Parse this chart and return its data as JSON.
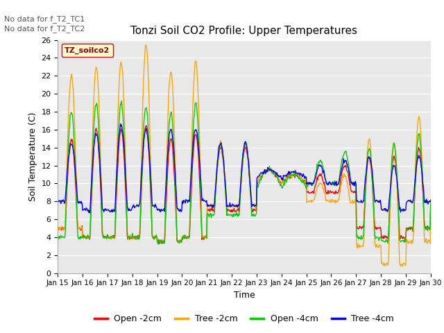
{
  "title": "Tonzi Soil CO2 Profile: Upper Temperatures",
  "xlabel": "Time",
  "ylabel": "Soil Temperature (C)",
  "annotations": [
    "No data for f_T2_TC1",
    "No data for f_T2_TC2"
  ],
  "legend_label": "TZ_soilco2",
  "series_labels": [
    "Open -2cm",
    "Tree -2cm",
    "Open -4cm",
    "Tree -4cm"
  ],
  "series_colors": [
    "#ff0000",
    "#ffa500",
    "#00cc00",
    "#0000ff"
  ],
  "ylim": [
    0,
    26
  ],
  "yticks": [
    0,
    2,
    4,
    6,
    8,
    10,
    12,
    14,
    16,
    18,
    20,
    22,
    24,
    26
  ],
  "x_tick_labels": [
    "Jan 15",
    "Jan 16",
    "Jan 17",
    "Jan 18",
    "Jan 19",
    "Jan 20",
    "Jan 21",
    "Jan 22",
    "Jan 23",
    "Jan 24",
    "Jan 25",
    "Jan 26",
    "Jan 27",
    "Jan 28",
    "Jan 29",
    "Jan 30"
  ],
  "background_color": "#e8e8e8",
  "grid_color": "#ffffff",
  "line_width": 1.0,
  "annot_color": "#555555",
  "legend_box_facecolor": "#ffffcc",
  "legend_box_edgecolor": "#cc0000",
  "legend_box_textcolor": "#990000"
}
